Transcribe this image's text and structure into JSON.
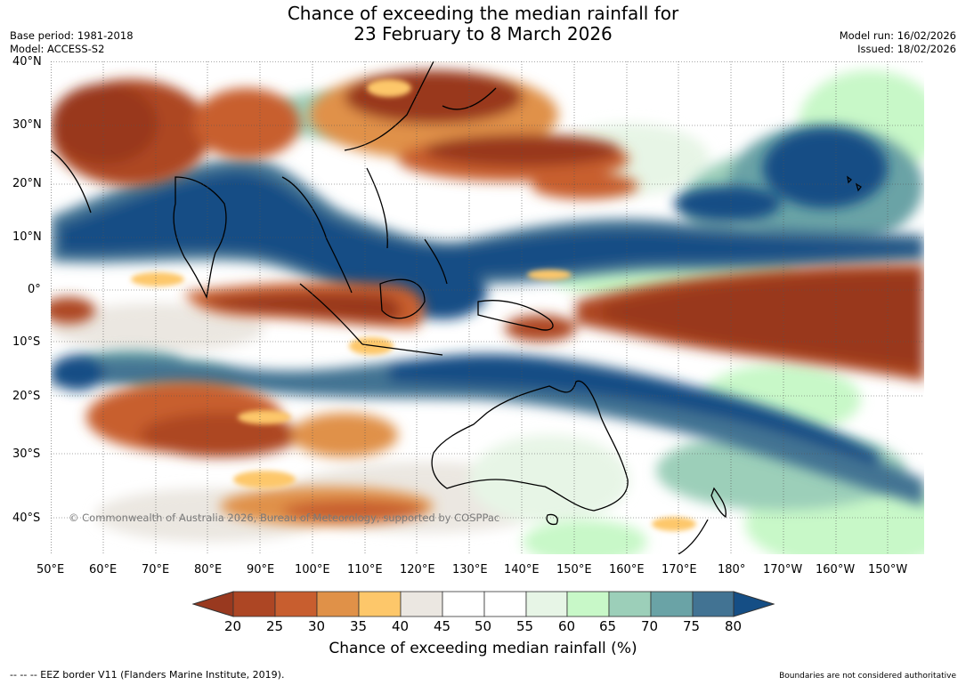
{
  "title": {
    "line1": "Chance of exceeding the median rainfall for",
    "line2": "23 February to 8 March 2026"
  },
  "meta_left": {
    "base_period": "Base period: 1981-2018",
    "model": "Model: ACCESS-S2"
  },
  "meta_right": {
    "model_run": "Model run: 16/02/2026",
    "issued": "Issued: 18/02/2026"
  },
  "map": {
    "lat_labels": [
      "40°N",
      "30°N",
      "20°N",
      "10°N",
      "0°",
      "10°S",
      "20°S",
      "30°S",
      "40°S"
    ],
    "lon_labels": [
      "50°E",
      "60°E",
      "70°E",
      "80°E",
      "90°E",
      "100°E",
      "110°E",
      "120°E",
      "130°E",
      "140°E",
      "150°E",
      "160°E",
      "170°E",
      "180°",
      "170°W",
      "160°W",
      "150°W"
    ],
    "watermark": "© Commonwealth of Australia 2026, Bureau of Meteorology, supported by COSPPac"
  },
  "colorbar": {
    "title": "Chance of exceeding median rainfall (%)",
    "ticks": [
      "20",
      "25",
      "30",
      "35",
      "40",
      "45",
      "50",
      "55",
      "60",
      "65",
      "70",
      "75",
      "80"
    ],
    "colors": {
      "below_20": "#99391f",
      "20_25": "#ad4624",
      "25_30": "#c85e2f",
      "30_35": "#e09148",
      "35_40": "#fdc76a",
      "40_45": "#ebe7e1",
      "45_50": "#ffffff",
      "50_55": "#ffffff",
      "55_60": "#e7f5e6",
      "60_65": "#c8f8c8",
      "65_70": "#9ccfb9",
      "70_75": "#6aa3a6",
      "75_80": "#427393",
      "above_80": "#154e85"
    }
  },
  "footer": {
    "eez_note": "--  --  -- EEZ border V11 (Flanders Marine Institute, 2019).",
    "boundary_note": "Boundaries are not considered authoritative"
  }
}
